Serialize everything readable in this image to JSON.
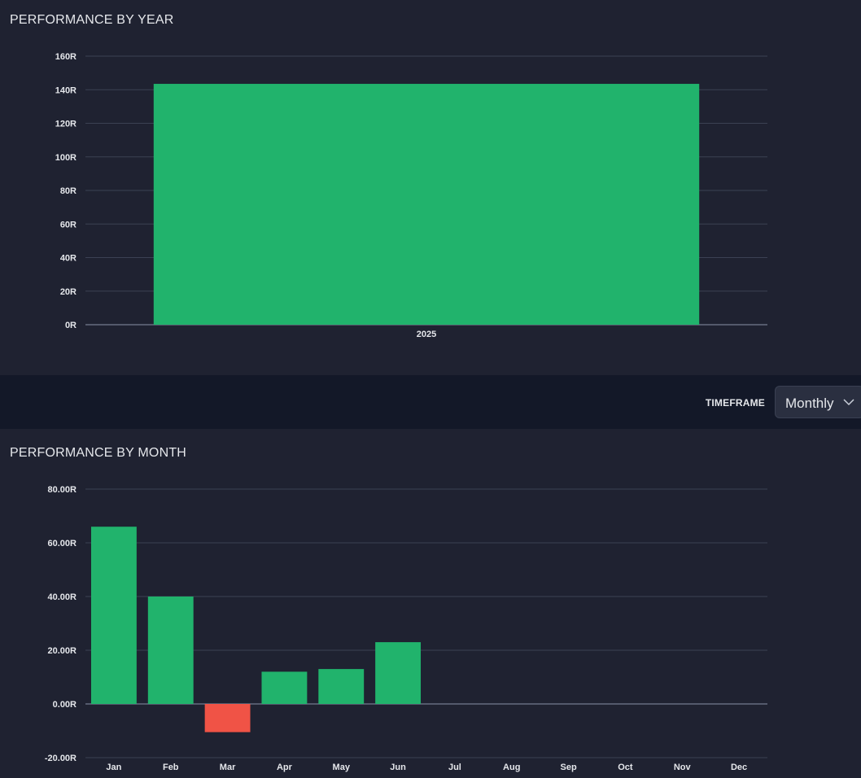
{
  "toolbar": {
    "timeframe_label": "TIMEFRAME",
    "timeframe_value": "Monthly",
    "chevron_icon": "chevron-down-icon"
  },
  "chart_data": [
    {
      "type": "bar",
      "title": "PERFORMANCE BY YEAR",
      "categories": [
        "2025"
      ],
      "values": [
        143.5
      ],
      "yticks": [
        "0R",
        "20R",
        "40R",
        "60R",
        "80R",
        "100R",
        "120R",
        "140R",
        "160R"
      ],
      "ylim": [
        0,
        160
      ],
      "grid": true,
      "colors": {
        "positive": "#21b36c",
        "negative": "#f05346"
      }
    },
    {
      "type": "bar",
      "title": "PERFORMANCE BY MONTH",
      "categories": [
        "Jan",
        "Feb",
        "Mar",
        "Apr",
        "May",
        "Jun",
        "Jul",
        "Aug",
        "Sep",
        "Oct",
        "Nov",
        "Dec"
      ],
      "values": [
        66,
        40,
        -10.5,
        12,
        13,
        23,
        0,
        0,
        0,
        0,
        0,
        0
      ],
      "yticks": [
        "-20.00R",
        "0.00R",
        "20.00R",
        "40.00R",
        "60.00R",
        "80.00R"
      ],
      "ylim": [
        -20,
        80
      ],
      "grid": true,
      "colors": {
        "positive": "#21b36c",
        "negative": "#f05346"
      }
    }
  ]
}
